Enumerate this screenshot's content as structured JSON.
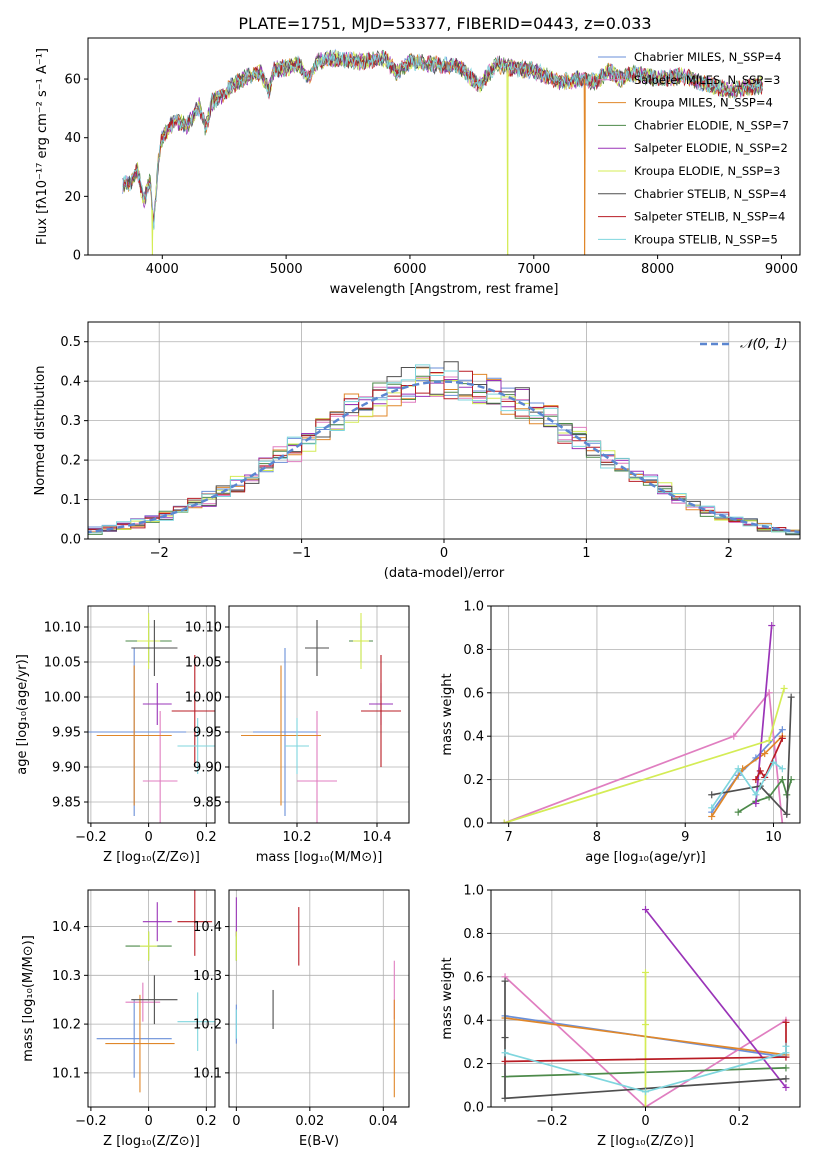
{
  "figure": {
    "title": "PLATE=1751, MJD=53377, FIBERID=0443, z=0.033"
  },
  "palette": [
    "#6a8fd8",
    "#e07ec0",
    "#e0872a",
    "#4d8a4a",
    "#9a34b8",
    "#d4ec55",
    "#4f4f4f",
    "#b81c24",
    "#7fd6de"
  ],
  "chart_data": [
    {
      "id": "spectrum",
      "type": "line",
      "xlabel": "wavelength [Angstrom, rest frame]",
      "ylabel": "Flux [fλ10⁻¹⁷ erg cm⁻² s⁻¹ A⁻¹]",
      "xlim": [
        3400,
        9150
      ],
      "ylim": [
        0,
        74
      ],
      "xticks": [
        4000,
        5000,
        6000,
        7000,
        8000,
        9000
      ],
      "yticks": [
        0,
        20,
        40,
        60
      ],
      "grid": false,
      "legend_position": "top-right",
      "series": [
        {
          "name": "Chabrier MILES, N_SSP=4"
        },
        {
          "name": "Salpeter MILES, N_SSP=3"
        },
        {
          "name": "Kroupa MILES, N_SSP=4"
        },
        {
          "name": "Chabrier ELODIE, N_SSP=7"
        },
        {
          "name": "Salpeter ELODIE, N_SSP=2"
        },
        {
          "name": "Kroupa ELODIE, N_SSP=3"
        },
        {
          "name": "Chabrier STELIB, N_SSP=4"
        },
        {
          "name": "Salpeter STELIB, N_SSP=4"
        },
        {
          "name": "Kroupa STELIB, N_SSP=5"
        }
      ],
      "model_range": [
        3680,
        8850
      ],
      "envelope": {
        "x": [
          3680,
          3750,
          3800,
          3850,
          3900,
          3930,
          3970,
          4000,
          4100,
          4200,
          4300,
          4350,
          4400,
          4500,
          4600,
          4700,
          4800,
          4861,
          4900,
          5000,
          5100,
          5176,
          5250,
          5400,
          5600,
          5800,
          5893,
          6000,
          6200,
          6400,
          6563,
          6700,
          6800,
          7000,
          7200,
          7400,
          7500,
          7600,
          7700,
          7800,
          8000,
          8200,
          8400,
          8600,
          8850
        ],
        "y": [
          24,
          25,
          29,
          18,
          26,
          10,
          33,
          40,
          46,
          44,
          51,
          43,
          52,
          55,
          59,
          61,
          62,
          56,
          63,
          64,
          65,
          60,
          66,
          67,
          66,
          67,
          62,
          66,
          65,
          64,
          58,
          65,
          64,
          63,
          59,
          60,
          59,
          63,
          60,
          62,
          60,
          61,
          58,
          56,
          58
        ]
      },
      "drops": [
        {
          "x": 3920,
          "series": 5
        },
        {
          "x": 6790,
          "series": 5
        },
        {
          "x": 7410,
          "series": 2
        }
      ]
    },
    {
      "id": "residuals",
      "type": "histogram",
      "xlabel": "(data-model)/error",
      "ylabel": "Normed distribution",
      "xlim": [
        -2.5,
        2.5
      ],
      "ylim": [
        0,
        0.55
      ],
      "xticks": [
        -2,
        -1,
        0,
        1,
        2
      ],
      "yticks": [
        0.0,
        0.1,
        0.2,
        0.3,
        0.4,
        0.5
      ],
      "grid": true,
      "legend_position": "top-right",
      "gaussian_label": "𝒩(0, 1)",
      "bin_width": 0.1
    },
    {
      "id": "age_vs_Z",
      "type": "scatter",
      "xlabel": "Z [log₁₀(Z/Z⊙)]",
      "ylabel": "age  [log₁₀(age/yr)]",
      "xlim": [
        -0.21,
        0.23
      ],
      "ylim": [
        9.82,
        10.13
      ],
      "xticks": [
        -0.2,
        0.0,
        0.2
      ],
      "yticks": [
        9.85,
        9.9,
        9.95,
        10.0,
        10.05,
        10.1
      ],
      "grid": true,
      "points": [
        {
          "series": 0,
          "x": -0.05,
          "y": 9.95,
          "ex": 0.18,
          "ey": 0.12
        },
        {
          "series": 1,
          "x": 0.04,
          "y": 9.88,
          "ex": 0.06,
          "ey": 0.1
        },
        {
          "series": 2,
          "x": -0.05,
          "y": 9.945,
          "ex": 0.13,
          "ey": 0.1
        },
        {
          "series": 3,
          "x": 0.0,
          "y": 10.08,
          "ex": 0.08,
          "ey": 0.03
        },
        {
          "series": 4,
          "x": 0.03,
          "y": 9.99,
          "ex": 0.05,
          "ey": 0.03
        },
        {
          "series": 5,
          "x": 0.0,
          "y": 10.08,
          "ex": 0.04,
          "ey": 0.04
        },
        {
          "series": 6,
          "x": 0.02,
          "y": 10.07,
          "ex": 0.08,
          "ey": 0.04
        },
        {
          "series": 7,
          "x": 0.16,
          "y": 9.98,
          "ex": 0.08,
          "ey": 0.08
        },
        {
          "series": 8,
          "x": 0.17,
          "y": 9.93,
          "ex": 0.07,
          "ey": 0.04
        }
      ]
    },
    {
      "id": "age_vs_mass",
      "type": "scatter",
      "xlabel": "mass [log₁₀(M/M⊙)]",
      "ylabel": "",
      "xlim": [
        10.03,
        10.48
      ],
      "ylim": [
        9.82,
        10.13
      ],
      "xticks": [
        10.2,
        10.4
      ],
      "yticks": [
        9.85,
        9.9,
        9.95,
        10.0,
        10.05,
        10.1
      ],
      "grid": true,
      "points": [
        {
          "series": 0,
          "x": 10.17,
          "y": 9.95,
          "ex": 0.08,
          "ey": 0.12
        },
        {
          "series": 1,
          "x": 10.25,
          "y": 9.88,
          "ex": 0.05,
          "ey": 0.1
        },
        {
          "series": 2,
          "x": 10.16,
          "y": 9.945,
          "ex": 0.1,
          "ey": 0.1
        },
        {
          "series": 3,
          "x": 10.36,
          "y": 10.08,
          "ex": 0.03,
          "ey": 0.03
        },
        {
          "series": 4,
          "x": 10.41,
          "y": 9.99,
          "ex": 0.03,
          "ey": 0.03
        },
        {
          "series": 5,
          "x": 10.36,
          "y": 10.08,
          "ex": 0.02,
          "ey": 0.04
        },
        {
          "series": 6,
          "x": 10.25,
          "y": 10.07,
          "ex": 0.03,
          "ey": 0.04
        },
        {
          "series": 7,
          "x": 10.41,
          "y": 9.98,
          "ex": 0.05,
          "ey": 0.08
        },
        {
          "series": 8,
          "x": 10.2,
          "y": 9.93,
          "ex": 0.03,
          "ey": 0.04
        }
      ]
    },
    {
      "id": "weight_vs_age",
      "type": "line",
      "xlabel": "age  [log₁₀(age/yr)]",
      "ylabel": "mass weight",
      "xlim": [
        6.8,
        10.3
      ],
      "ylim": [
        0,
        1.0
      ],
      "xticks": [
        7,
        8,
        9,
        10
      ],
      "yticks": [
        0.0,
        0.2,
        0.4,
        0.6,
        0.8,
        1.0
      ],
      "grid": true,
      "series": [
        {
          "series": 0,
          "x": [
            9.3,
            9.6,
            9.8,
            10.1
          ],
          "y": [
            0.05,
            0.22,
            0.3,
            0.43
          ]
        },
        {
          "series": 1,
          "x": [
            6.95,
            9.55,
            9.95,
            10.1
          ],
          "y": [
            0.0,
            0.4,
            0.6,
            0.0
          ]
        },
        {
          "series": 2,
          "x": [
            9.3,
            9.65,
            9.9,
            10.1
          ],
          "y": [
            0.03,
            0.25,
            0.32,
            0.4
          ]
        },
        {
          "series": 3,
          "x": [
            9.6,
            9.8,
            9.95,
            10.1,
            10.15,
            10.2
          ],
          "y": [
            0.05,
            0.1,
            0.12,
            0.2,
            0.13,
            0.2
          ]
        },
        {
          "series": 4,
          "x": [
            9.8,
            9.98
          ],
          "y": [
            0.09,
            0.91
          ]
        },
        {
          "series": 5,
          "x": [
            6.95,
            9.95,
            10.12
          ],
          "y": [
            0.0,
            0.38,
            0.62
          ]
        },
        {
          "series": 6,
          "x": [
            9.3,
            9.85,
            10.15,
            10.2
          ],
          "y": [
            0.13,
            0.17,
            0.04,
            0.58
          ]
        },
        {
          "series": 7,
          "x": [
            9.8,
            9.85,
            9.9,
            10.1
          ],
          "y": [
            0.2,
            0.24,
            0.21,
            0.39
          ]
        },
        {
          "series": 8,
          "x": [
            9.3,
            9.6,
            9.8,
            10.0,
            10.1
          ],
          "y": [
            0.07,
            0.25,
            0.13,
            0.28,
            0.25
          ]
        }
      ]
    },
    {
      "id": "mass_vs_Z",
      "type": "scatter",
      "xlabel": "Z [log₁₀(Z/Z⊙)]",
      "ylabel": "mass [log₁₀(M/M⊙)]",
      "xlim": [
        -0.21,
        0.23
      ],
      "ylim": [
        10.03,
        10.475
      ],
      "xticks": [
        -0.2,
        0.0,
        0.2
      ],
      "yticks": [
        10.1,
        10.2,
        10.3,
        10.4
      ],
      "grid": true,
      "points": [
        {
          "series": 0,
          "x": -0.05,
          "y": 10.17,
          "ex": 0.13,
          "ey": 0.08
        },
        {
          "series": 1,
          "x": -0.02,
          "y": 10.245,
          "ex": 0.06,
          "ey": 0.04
        },
        {
          "series": 2,
          "x": -0.03,
          "y": 10.16,
          "ex": 0.12,
          "ey": 0.1
        },
        {
          "series": 3,
          "x": 0.0,
          "y": 10.36,
          "ex": 0.08,
          "ey": 0.03
        },
        {
          "series": 4,
          "x": 0.03,
          "y": 10.41,
          "ex": 0.05,
          "ey": 0.04
        },
        {
          "series": 5,
          "x": 0.0,
          "y": 10.36,
          "ex": 0.03,
          "ey": 0.03
        },
        {
          "series": 6,
          "x": 0.02,
          "y": 10.25,
          "ex": 0.08,
          "ey": 0.05
        },
        {
          "series": 7,
          "x": 0.16,
          "y": 10.41,
          "ex": 0.06,
          "ey": 0.07
        },
        {
          "series": 8,
          "x": 0.17,
          "y": 10.205,
          "ex": 0.07,
          "ey": 0.06
        }
      ]
    },
    {
      "id": "mass_vs_ebv",
      "type": "scatter",
      "xlabel": "E(B-V)",
      "ylabel": "",
      "xlim": [
        -0.002,
        0.047
      ],
      "ylim": [
        10.03,
        10.475
      ],
      "xticks": [
        0.0,
        0.02,
        0.04
      ],
      "yticks": [
        10.1,
        10.2,
        10.3,
        10.4
      ],
      "grid": true,
      "points": [
        {
          "series": 0,
          "x": 0.0,
          "y": 10.2,
          "ex": 0,
          "ey": 0.04
        },
        {
          "series": 1,
          "x": 0.043,
          "y": 10.27,
          "ex": 0,
          "ey": 0.06
        },
        {
          "series": 2,
          "x": 0.043,
          "y": 10.15,
          "ex": 0,
          "ey": 0.1
        },
        {
          "series": 3,
          "x": 0.0,
          "y": 10.36,
          "ex": 0,
          "ey": 0.03
        },
        {
          "series": 4,
          "x": 0.0,
          "y": 10.42,
          "ex": 0,
          "ey": 0.04
        },
        {
          "series": 5,
          "x": 0.0,
          "y": 10.36,
          "ex": 0,
          "ey": 0.03
        },
        {
          "series": 6,
          "x": 0.01,
          "y": 10.23,
          "ex": 0,
          "ey": 0.04
        },
        {
          "series": 7,
          "x": 0.017,
          "y": 10.38,
          "ex": 0,
          "ey": 0.06
        },
        {
          "series": 8,
          "x": 0.0,
          "y": 10.2,
          "ex": 0,
          "ey": 0.03
        }
      ]
    },
    {
      "id": "weight_vs_Z",
      "type": "line",
      "xlabel": "Z [log₁₀(Z/Z⊙)]",
      "ylabel": "mass weight",
      "xlim": [
        -0.33,
        0.33
      ],
      "ylim": [
        0,
        1.0
      ],
      "xticks": [
        -0.2,
        0.0,
        0.2
      ],
      "yticks": [
        0.0,
        0.2,
        0.4,
        0.6,
        0.8,
        1.0
      ],
      "grid": true,
      "series": [
        {
          "series": 0,
          "x": [
            -0.3,
            0.3
          ],
          "y": [
            0.42,
            0.23
          ]
        },
        {
          "series": 1,
          "x": [
            -0.3,
            0.0,
            0.3
          ],
          "y": [
            0.6,
            0.0,
            0.4
          ]
        },
        {
          "series": 2,
          "x": [
            -0.3,
            0.3
          ],
          "y": [
            0.41,
            0.24
          ]
        },
        {
          "series": 3,
          "x": [
            -0.3,
            0.0,
            0.3
          ],
          "y": [
            0.14,
            0.16,
            0.18
          ]
        },
        {
          "series": 4,
          "x": [
            0.0,
            0.3
          ],
          "y": [
            0.91,
            0.09
          ]
        },
        {
          "series": 5,
          "x": [
            0.0,
            0.0,
            0.0
          ],
          "y": [
            0.62,
            0.38,
            0.0
          ]
        },
        {
          "series": 6,
          "x": [
            -0.3,
            -0.3,
            -0.3,
            0.3
          ],
          "y": [
            0.58,
            0.32,
            0.04,
            0.13
          ]
        },
        {
          "series": 7,
          "x": [
            -0.3,
            0.3,
            0.3
          ],
          "y": [
            0.21,
            0.23,
            0.39
          ]
        },
        {
          "series": 8,
          "x": [
            -0.3,
            0.0,
            0.3,
            0.3
          ],
          "y": [
            0.25,
            0.07,
            0.25,
            0.28
          ]
        }
      ]
    }
  ]
}
